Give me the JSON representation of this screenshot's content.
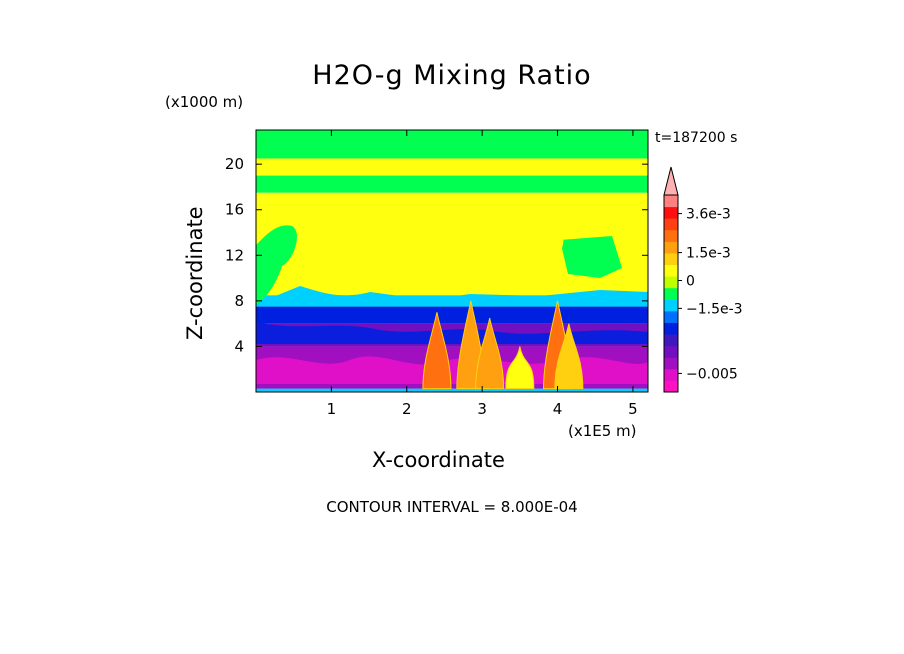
{
  "chart_data": {
    "type": "heatmap",
    "title": "H2O-g Mixing Ratio",
    "xlabel": "X-coordinate",
    "ylabel": "Z-coordinate",
    "x_unit_label": "(x1E5 m)",
    "y_unit_label": "(x1000 m)",
    "time_label": "t=187200 s",
    "contour_interval_label": "CONTOUR INTERVAL = 8.000E-04",
    "xlim": [
      0,
      5.2
    ],
    "ylim": [
      0,
      23
    ],
    "x_ticks": [
      {
        "value": 1,
        "label": "1"
      },
      {
        "value": 2,
        "label": "2"
      },
      {
        "value": 3,
        "label": "3"
      },
      {
        "value": 4,
        "label": "4"
      },
      {
        "value": 5,
        "label": "5"
      }
    ],
    "y_ticks": [
      {
        "value": 4,
        "label": "4"
      },
      {
        "value": 8,
        "label": "8"
      },
      {
        "value": 12,
        "label": "12"
      },
      {
        "value": 16,
        "label": "16"
      },
      {
        "value": 20,
        "label": "20"
      }
    ],
    "colorbar": {
      "colors": [
        "#ff10c0",
        "#e010c8",
        "#a010c0",
        "#7010c0",
        "#4018c0",
        "#0020e0",
        "#0070ff",
        "#00d0ff",
        "#00ff50",
        "#c0ff00",
        "#ffff10",
        "#ffd010",
        "#ffa010",
        "#ff7010",
        "#ff4010",
        "#ff1010",
        "#ff8080"
      ],
      "labels": [
        {
          "value": 0.0036,
          "label": "3.6e-3"
        },
        {
          "value": 0.0015,
          "label": "1.5e-3"
        },
        {
          "value": 0,
          "label": "0"
        },
        {
          "value": -0.0015,
          "label": "−1.5e-3"
        },
        {
          "value": -0.005,
          "label": "−0.005"
        }
      ]
    },
    "field_bands": [
      {
        "z_bottom": 0,
        "z_top": 0.3,
        "color": "#00d0ff"
      },
      {
        "z_bottom": 0.3,
        "z_top": 4,
        "color": "#a010c0"
      },
      {
        "z_bottom": 4,
        "z_top": 6,
        "color": "#7010c0"
      },
      {
        "z_bottom": 6,
        "z_top": 7.5,
        "color": "#0020e0"
      },
      {
        "z_bottom": 7.5,
        "z_top": 8.5,
        "color": "#00d0ff"
      },
      {
        "z_bottom": 8.5,
        "z_top": 17.5,
        "color": "#ffff10"
      },
      {
        "z_bottom": 17.5,
        "z_top": 19,
        "color": "#00ff50"
      },
      {
        "z_bottom": 19,
        "z_top": 20.5,
        "color": "#ffff10"
      },
      {
        "z_bottom": 20.5,
        "z_top": 23,
        "color": "#00ff50"
      }
    ],
    "convective_plumes": [
      {
        "x": 2.4,
        "z_top": 7,
        "color": "#ff7010"
      },
      {
        "x": 2.85,
        "z_top": 8,
        "color": "#ffa010"
      },
      {
        "x": 3.1,
        "z_top": 6.5,
        "color": "#ffa010"
      },
      {
        "x": 3.5,
        "z_top": 4,
        "color": "#ffff10"
      },
      {
        "x": 4.0,
        "z_top": 8,
        "color": "#ff7010"
      },
      {
        "x": 4.15,
        "z_top": 6,
        "color": "#ffd010"
      }
    ]
  }
}
